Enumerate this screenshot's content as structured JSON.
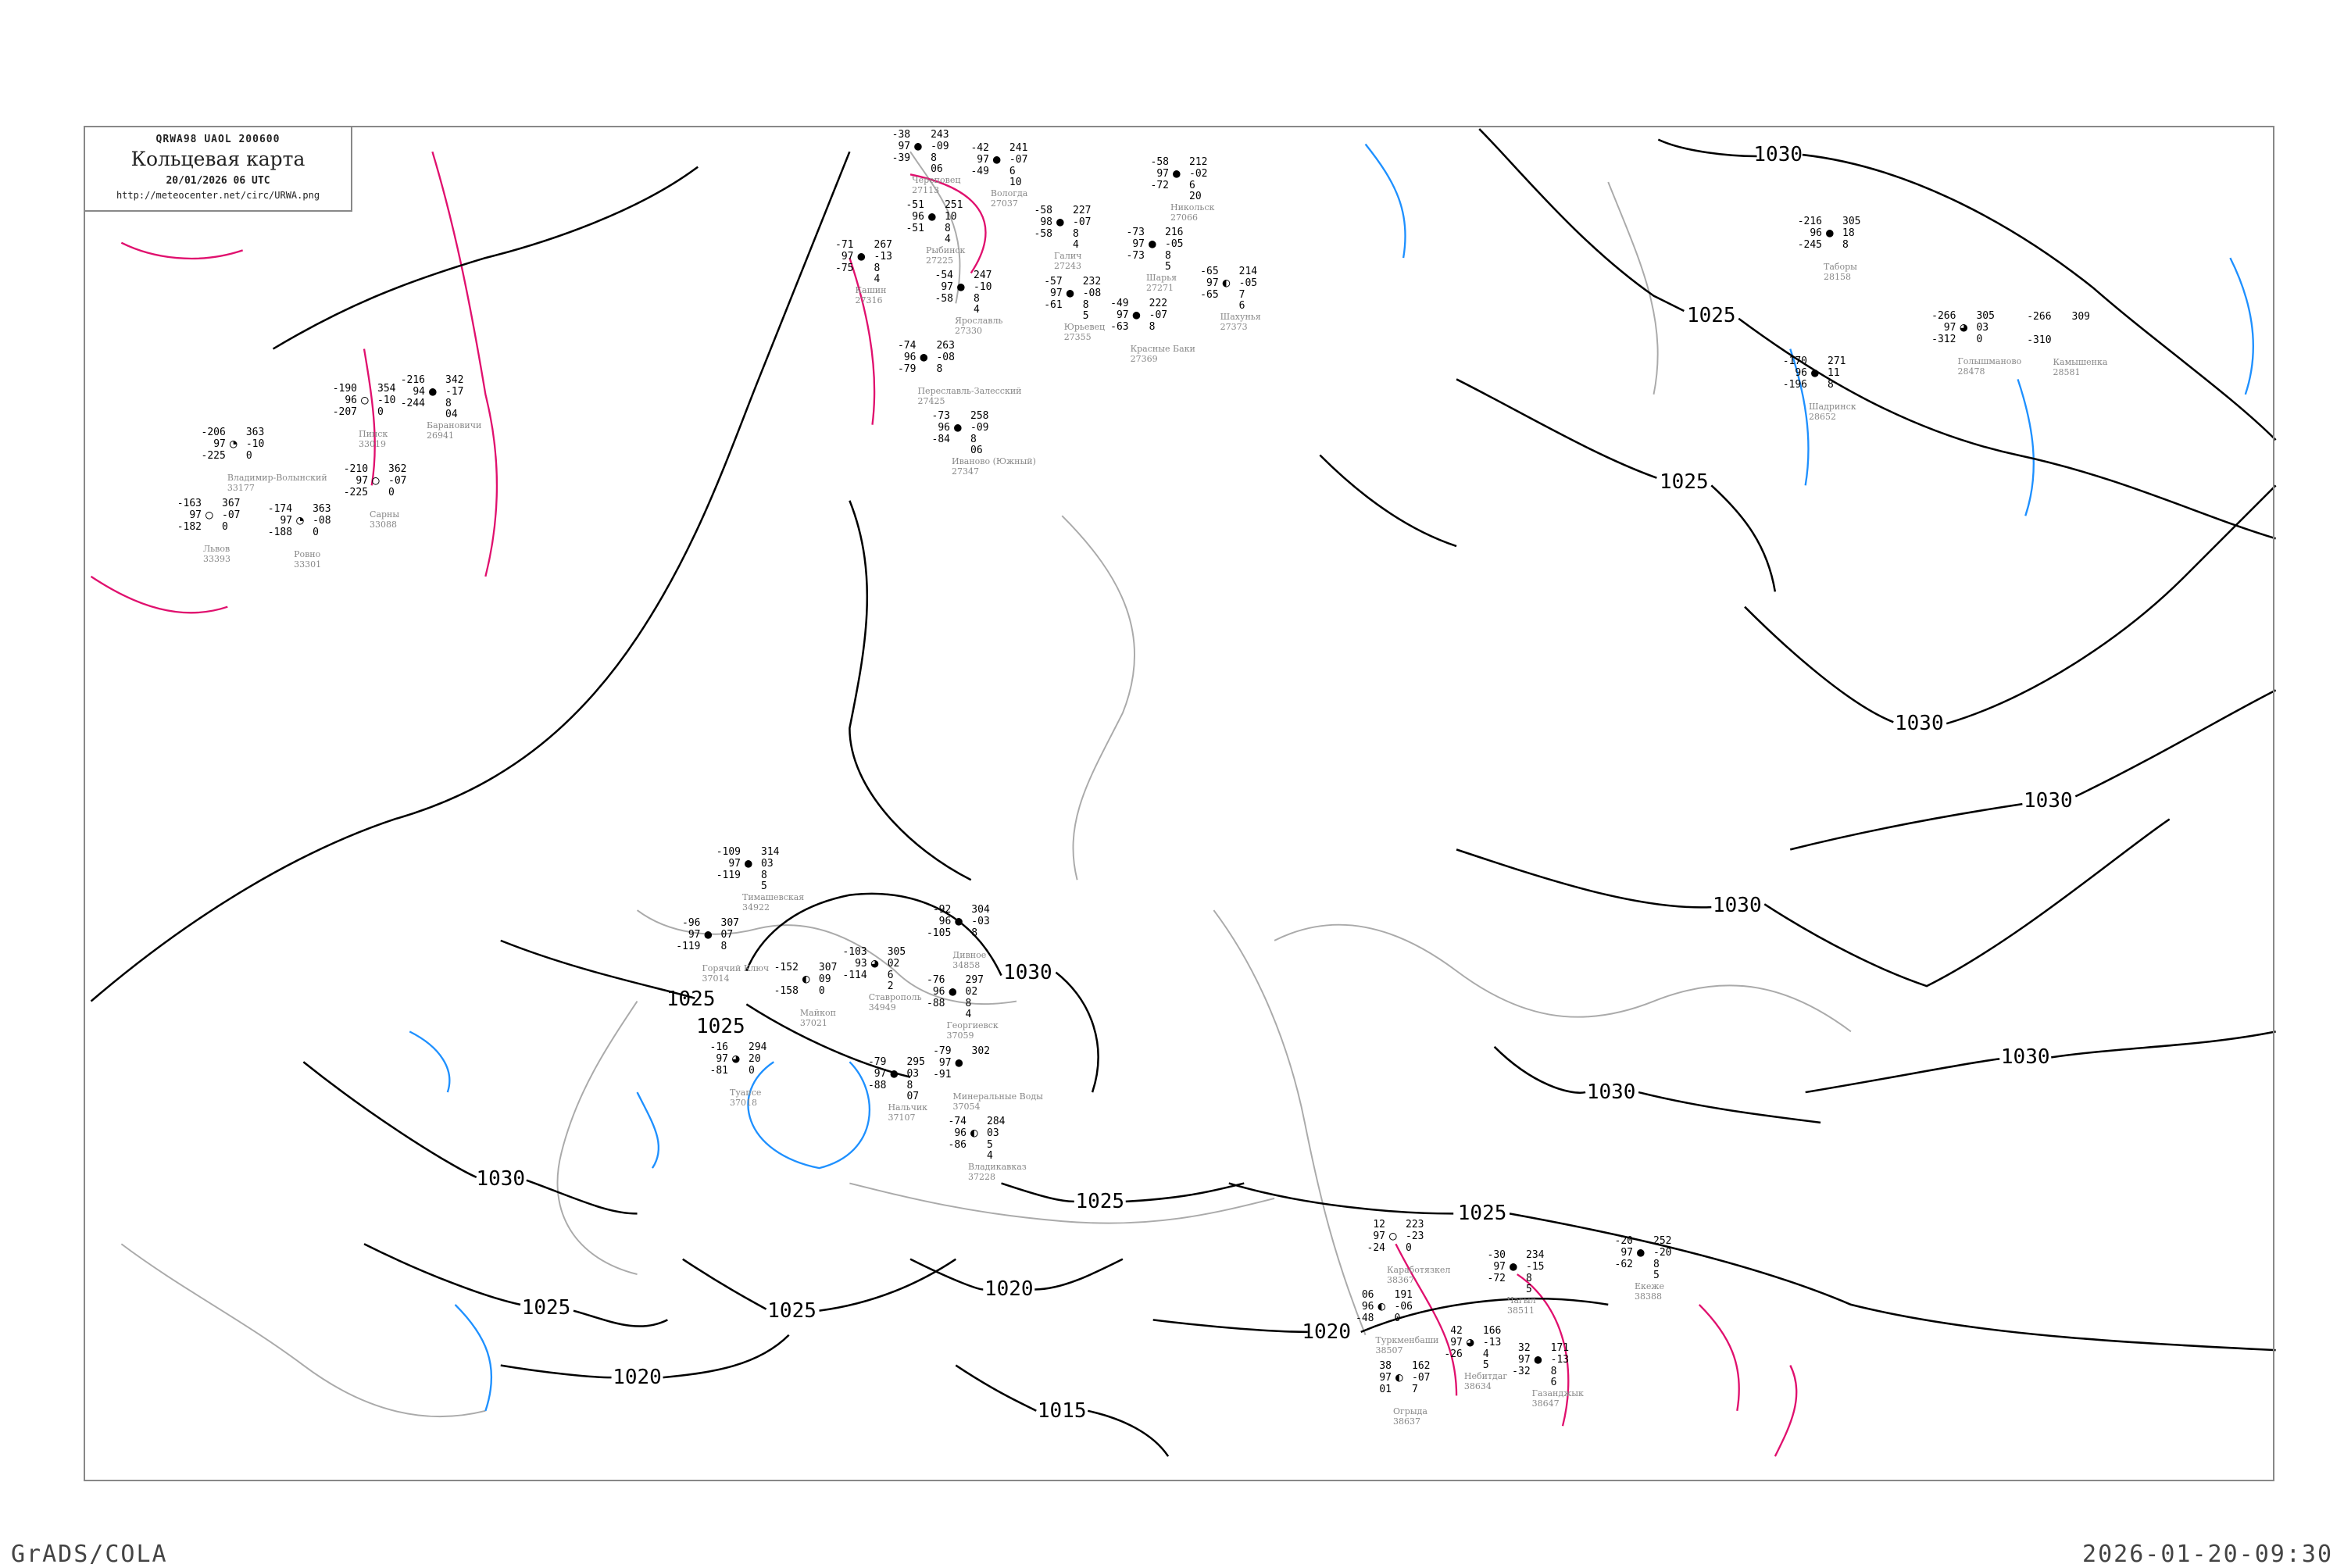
{
  "header": {
    "code": "QRWA98   UAOL   200600",
    "title": "Кольцевая карта",
    "datetime": "20/01/2026 06 UTC",
    "url": "http://meteocenter.net/circ/URWA.png"
  },
  "footer": {
    "left": "GrADS/COLA",
    "right": "2026-01-20-09:30"
  },
  "colors": {
    "isobar": "#000000",
    "coastline": "#aaaaaa",
    "isotherm_warm": "#e0106e",
    "isotherm_cold": "#1e90ff",
    "snow_marker": "#3a8ee6",
    "fog_marker": "#ffff66"
  },
  "isobar_labels": [
    "1030",
    "1025",
    "1025",
    "1030",
    "1030",
    "1030",
    "1030",
    "1030",
    "1025",
    "1020",
    "1025",
    "1025",
    "1030",
    "1030",
    "1025",
    "1020",
    "1015",
    "1020",
    "1025",
    "1025"
  ],
  "stations": [
    {
      "name": "Череповец",
      "id": "27113",
      "t": "-38",
      "vv": "97",
      "td": "-39",
      "p": "243",
      "dp": "-09",
      "n1": "8",
      "n2": "06",
      "cover": "full"
    },
    {
      "name": "Вологда",
      "id": "27037",
      "t": "-42",
      "vv": "97",
      "td": "-49",
      "p": "241",
      "dp": "-07",
      "n1": "6",
      "n2": "10",
      "cover": "full"
    },
    {
      "name": "Никольск",
      "id": "27066",
      "t": "-58",
      "vv": "97",
      "td": "-72",
      "p": "212",
      "dp": "-02",
      "n1": "6",
      "n2": "20",
      "cover": "full"
    },
    {
      "name": "Рыбинск",
      "id": "27225",
      "t": "-51",
      "vv": "96",
      "td": "-51",
      "p": "251",
      "dp": "10",
      "n1": "8",
      "n2": "4",
      "cover": "full"
    },
    {
      "name": "Галич",
      "id": "27243",
      "t": "-58",
      "vv": "98",
      "td": "-58",
      "p": "227",
      "dp": "-07",
      "n1": "8",
      "n2": "4",
      "cover": "full"
    },
    {
      "name": "Кашин",
      "id": "27316",
      "t": "-71",
      "vv": "97",
      "td": "-75",
      "p": "267",
      "dp": "-13",
      "n1": "8",
      "n2": "4",
      "cover": "full"
    },
    {
      "name": "Ярославль",
      "id": "27330",
      "t": "-54",
      "vv": "97",
      "td": "-58",
      "p": "247",
      "dp": "-10",
      "n1": "8",
      "n2": "4",
      "cover": "full"
    },
    {
      "name": "Шарья",
      "id": "27271",
      "t": "-73",
      "vv": "97",
      "td": "-73",
      "p": "216",
      "dp": "-05",
      "n1": "8",
      "n2": "5",
      "cover": "full"
    },
    {
      "name": "Шахунья",
      "id": "27373",
      "t": "-65",
      "vv": "97",
      "td": "-65",
      "p": "214",
      "dp": "-05",
      "n1": "7",
      "n2": "6",
      "cover": "half"
    },
    {
      "name": "Юрьевец",
      "id": "27355",
      "t": "-57",
      "vv": "97",
      "td": "-61",
      "p": "232",
      "dp": "-08",
      "n1": "8",
      "n2": "5",
      "cover": "full"
    },
    {
      "name": "Красные Баки",
      "id": "27369",
      "t": "-49",
      "vv": "97",
      "td": "-63",
      "p": "222",
      "dp": "-07",
      "n1": "8",
      "n2": "",
      "cover": "full"
    },
    {
      "name": "Переславль-Залесский",
      "id": "27425",
      "t": "-74",
      "vv": "96",
      "td": "-79",
      "p": "263",
      "dp": "-08",
      "n1": "8",
      "n2": "",
      "cover": "full"
    },
    {
      "name": "Иваново (Южный)",
      "id": "27347",
      "t": "-73",
      "vv": "96",
      "td": "-84",
      "p": "258",
      "dp": "-09",
      "n1": "8",
      "n2": "06",
      "cover": "full"
    },
    {
      "name": "Таборы",
      "id": "28158",
      "t": "-216",
      "vv": "96",
      "td": "-245",
      "p": "305",
      "dp": "18",
      "n1": "8",
      "n2": "",
      "cover": "full"
    },
    {
      "name": "Голышманово",
      "id": "28478",
      "t": "-266",
      "vv": "97",
      "td": "-312",
      "p": "305",
      "dp": "03",
      "n1": "0",
      "n2": "",
      "cover": "three-quarter"
    },
    {
      "name": "Камышенка",
      "id": "28581",
      "t": "-266",
      "vv": "",
      "td": "-310",
      "p": "309",
      "dp": "",
      "n1": "",
      "n2": "",
      "cover": "none"
    },
    {
      "name": "Шадринск",
      "id": "28652",
      "t": "-170",
      "vv": "96",
      "td": "-196",
      "p": "271",
      "dp": "11",
      "n1": "8",
      "n2": "",
      "cover": "full"
    },
    {
      "name": "Барановичи",
      "id": "26941",
      "t": "-216",
      "vv": "94",
      "td": "-244",
      "p": "342",
      "dp": "-17",
      "n1": "8",
      "n2": "04",
      "cover": "full"
    },
    {
      "name": "Пинск",
      "id": "33019",
      "t": "-190",
      "vv": "96",
      "td": "-207",
      "p": "354",
      "dp": "-10",
      "n1": "0",
      "n2": "",
      "cover": "clear"
    },
    {
      "name": "Сарны",
      "id": "33088",
      "t": "-210",
      "vv": "97",
      "td": "-225",
      "p": "362",
      "dp": "-07",
      "n1": "0",
      "n2": "",
      "cover": "clear"
    },
    {
      "name": "Ровно",
      "id": "33301",
      "t": "-174",
      "vv": "97",
      "td": "-188",
      "p": "363",
      "dp": "-08",
      "n1": "0",
      "n2": "",
      "cover": "quarter"
    },
    {
      "name": "Владимир-Волынский",
      "id": "33177",
      "t": "-206",
      "vv": "97",
      "td": "-225",
      "p": "363",
      "dp": "-10",
      "n1": "0",
      "n2": "",
      "cover": "quarter"
    },
    {
      "name": "Львов",
      "id": "33393",
      "t": "-163",
      "vv": "97",
      "td": "-182",
      "p": "367",
      "dp": "-07",
      "n1": "0",
      "n2": "",
      "cover": "clear"
    },
    {
      "name": "Тимашевская",
      "id": "34922",
      "t": "-109",
      "vv": "97",
      "td": "-119",
      "p": "314",
      "dp": "03",
      "n1": "8",
      "n2": "5",
      "cover": "full"
    },
    {
      "name": "Дивное",
      "id": "34858",
      "t": "-92",
      "vv": "96",
      "td": "-105",
      "p": "304",
      "dp": "-03",
      "n1": "8",
      "n2": "",
      "cover": "full"
    },
    {
      "name": "Ставрополь",
      "id": "34949",
      "t": "-103",
      "vv": "93",
      "td": "-114",
      "p": "305",
      "dp": "02",
      "n1": "6",
      "n2": "2",
      "cover": "three-quarter"
    },
    {
      "name": "Горячий Ключ",
      "id": "37014",
      "t": "-96",
      "vv": "97",
      "td": "-119",
      "p": "307",
      "dp": "07",
      "n1": "8",
      "n2": "",
      "cover": "full"
    },
    {
      "name": "Майкоп",
      "id": "37021",
      "t": "-152",
      "vv": "",
      "td": "-158",
      "p": "307",
      "dp": "09",
      "n1": "0",
      "n2": "",
      "cover": "half"
    },
    {
      "name": "Туапсе",
      "id": "37018",
      "t": "-16",
      "vv": "97",
      "td": "-81",
      "p": "294",
      "dp": "20",
      "n1": "0",
      "n2": "",
      "cover": "three-quarter"
    },
    {
      "name": "Минеральные Воды",
      "id": "37054",
      "t": "-79",
      "vv": "97",
      "td": "-91",
      "p": "302",
      "dp": "",
      "n1": "",
      "n2": "",
      "cover": "full"
    },
    {
      "name": "Георгиевск",
      "id": "37059",
      "t": "-76",
      "vv": "96",
      "td": "-88",
      "p": "297",
      "dp": "02",
      "n1": "8",
      "n2": "4",
      "cover": "full"
    },
    {
      "name": "Нальчик",
      "id": "37107",
      "t": "-79",
      "vv": "97",
      "td": "-88",
      "p": "295",
      "dp": "03",
      "n1": "8",
      "n2": "07",
      "cover": "full"
    },
    {
      "name": "Владикавказ",
      "id": "37228",
      "t": "-74",
      "vv": "96",
      "td": "-86",
      "p": "284",
      "dp": "03",
      "n1": "5",
      "n2": "4",
      "cover": "half"
    },
    {
      "name": "Каработязкел",
      "id": "38367",
      "t": "12",
      "vv": "97",
      "td": "-24",
      "p": "223",
      "dp": "-23",
      "n1": "0",
      "n2": "",
      "cover": "clear"
    },
    {
      "name": "Чагыл",
      "id": "38511",
      "t": "-30",
      "vv": "97",
      "td": "-72",
      "p": "234",
      "dp": "-15",
      "n1": "8",
      "n2": "5",
      "cover": "full"
    },
    {
      "name": "Екеже",
      "id": "38388",
      "t": "-20",
      "vv": "97",
      "td": "-62",
      "p": "252",
      "dp": "-20",
      "n1": "8",
      "n2": "5",
      "cover": "full"
    },
    {
      "name": "Туркменбаши",
      "id": "38507",
      "t": "06",
      "vv": "96",
      "td": "-48",
      "p": "191",
      "dp": "-06",
      "n1": "0",
      "n2": "",
      "cover": "half"
    },
    {
      "name": "Небитдаг",
      "id": "38634",
      "t": "42",
      "vv": "97",
      "td": "-26",
      "p": "166",
      "dp": "-13",
      "n1": "4",
      "n2": "5",
      "cover": "three-quarter"
    },
    {
      "name": "Огрыда",
      "id": "38637",
      "t": "38",
      "vv": "97",
      "td": "01",
      "p": "162",
      "dp": "-07",
      "n1": "7",
      "n2": "",
      "cover": "half"
    },
    {
      "name": "Газанджык",
      "id": "38647",
      "t": "32",
      "vv": "97",
      "td": "-32",
      "p": "171",
      "dp": "-13",
      "n1": "8",
      "n2": "6",
      "cover": "full"
    }
  ]
}
